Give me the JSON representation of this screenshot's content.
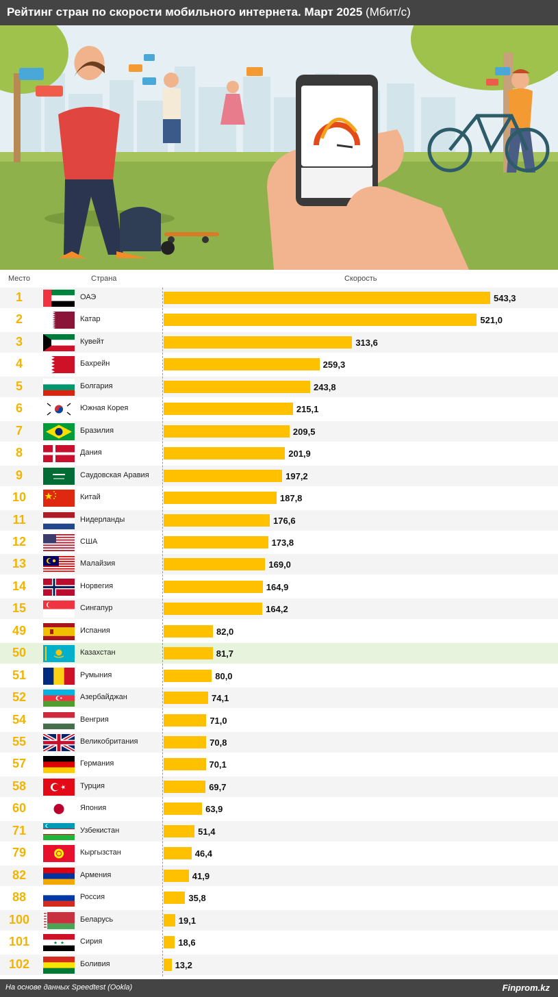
{
  "title": {
    "main": "Рейтинг стран по скорости мобильного интернета. Март 2025",
    "unit": "(Мбит/с)"
  },
  "headers": {
    "rank": "Место",
    "country": "Страна",
    "speed": "Скорость"
  },
  "footer": {
    "source": "На основе данных Speedtest (Ookla)",
    "brand": "Finprom.kz"
  },
  "colors": {
    "bar": "#ffc000",
    "rank_text": "#f2b400",
    "highlight_row": "#e8f3de",
    "bars_header": "#444444"
  },
  "highlight_country": "Казахстан",
  "chart_data": {
    "type": "bar",
    "orientation": "horizontal",
    "title": "Рейтинг стран по скорости мобильного интернета. Март 2025 (Мбит/с)",
    "xlabel": "Скорость",
    "xlim": [
      0,
      543.3
    ],
    "grid": false,
    "legend": "none",
    "rows": [
      {
        "rank": "1",
        "country": "ОАЭ",
        "flag": "ae",
        "value": 543.3,
        "label": "543,3"
      },
      {
        "rank": "2",
        "country": "Катар",
        "flag": "qa",
        "value": 521.0,
        "label": "521,0"
      },
      {
        "rank": "3",
        "country": "Кувейт",
        "flag": "kw",
        "value": 313.6,
        "label": "313,6"
      },
      {
        "rank": "4",
        "country": "Бахрейн",
        "flag": "bh",
        "value": 259.3,
        "label": "259,3"
      },
      {
        "rank": "5",
        "country": "Болгария",
        "flag": "bg",
        "value": 243.8,
        "label": "243,8"
      },
      {
        "rank": "6",
        "country": "Южная Корея",
        "flag": "kr",
        "value": 215.1,
        "label": "215,1"
      },
      {
        "rank": "7",
        "country": "Бразилия",
        "flag": "br",
        "value": 209.5,
        "label": "209,5"
      },
      {
        "rank": "8",
        "country": "Дания",
        "flag": "dk",
        "value": 201.9,
        "label": "201,9"
      },
      {
        "rank": "9",
        "country": "Саудовская Аравия",
        "flag": "sa",
        "value": 197.2,
        "label": "197,2"
      },
      {
        "rank": "10",
        "country": "Китай",
        "flag": "cn",
        "value": 187.8,
        "label": "187,8"
      },
      {
        "rank": "11",
        "country": "Нидерланды",
        "flag": "nl",
        "value": 176.6,
        "label": "176,6"
      },
      {
        "rank": "12",
        "country": "США",
        "flag": "us",
        "value": 173.8,
        "label": "173,8"
      },
      {
        "rank": "13",
        "country": "Малайзия",
        "flag": "my",
        "value": 169.0,
        "label": "169,0"
      },
      {
        "rank": "14",
        "country": "Норвегия",
        "flag": "no",
        "value": 164.9,
        "label": "164,9"
      },
      {
        "rank": "15",
        "country": "Сингапур",
        "flag": "sg",
        "value": 164.2,
        "label": "164,2"
      },
      {
        "rank": "49",
        "country": "Испания",
        "flag": "es",
        "value": 82.0,
        "label": "82,0"
      },
      {
        "rank": "50",
        "country": "Казахстан",
        "flag": "kz",
        "value": 81.7,
        "label": "81,7"
      },
      {
        "rank": "51",
        "country": "Румыния",
        "flag": "ro",
        "value": 80.0,
        "label": "80,0"
      },
      {
        "rank": "52",
        "country": "Азербайджан",
        "flag": "az",
        "value": 74.1,
        "label": "74,1"
      },
      {
        "rank": "54",
        "country": "Венгрия",
        "flag": "hu",
        "value": 71.0,
        "label": "71,0"
      },
      {
        "rank": "55",
        "country": "Великобритания",
        "flag": "gb",
        "value": 70.8,
        "label": "70,8"
      },
      {
        "rank": "57",
        "country": "Германия",
        "flag": "de",
        "value": 70.1,
        "label": "70,1"
      },
      {
        "rank": "58",
        "country": "Турция",
        "flag": "tr",
        "value": 69.7,
        "label": "69,7"
      },
      {
        "rank": "60",
        "country": "Япония",
        "flag": "jp",
        "value": 63.9,
        "label": "63,9"
      },
      {
        "rank": "71",
        "country": "Узбекистан",
        "flag": "uz",
        "value": 51.4,
        "label": "51,4"
      },
      {
        "rank": "79",
        "country": "Кыргызстан",
        "flag": "kg",
        "value": 46.4,
        "label": "46,4"
      },
      {
        "rank": "82",
        "country": "Армения",
        "flag": "am",
        "value": 41.9,
        "label": "41,9"
      },
      {
        "rank": "88",
        "country": "Россия",
        "flag": "ru",
        "value": 35.8,
        "label": "35,8"
      },
      {
        "rank": "100",
        "country": "Беларусь",
        "flag": "by",
        "value": 19.1,
        "label": "19,1"
      },
      {
        "rank": "101",
        "country": "Сирия",
        "flag": "sy",
        "value": 18.6,
        "label": "18,6"
      },
      {
        "rank": "102",
        "country": "Боливия",
        "flag": "bo",
        "value": 13.2,
        "label": "13,2"
      }
    ]
  }
}
